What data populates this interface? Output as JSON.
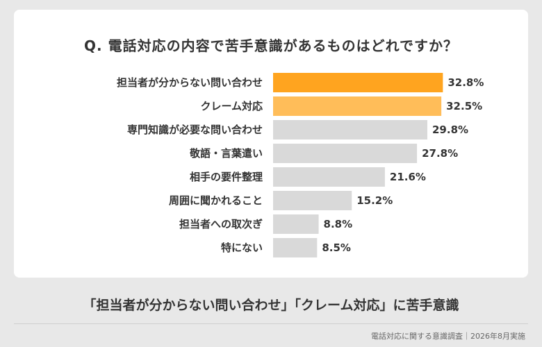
{
  "question": "Q. 電話対応の内容で苦手意識があるものはどれですか？",
  "headline": "「担当者が分からない問い合わせ」「クレーム対応」に苦手意識",
  "source": "電話対応に関する意識調査｜2026年8月実施",
  "colors": {
    "highlight_primary": "#ffa41f",
    "highlight_secondary": "#ffbd59",
    "bar_default": "#d9d9d9"
  },
  "chart_data": {
    "type": "bar",
    "orientation": "horizontal",
    "title": "Q. 電話対応の内容で苦手意識があるものはどれですか？",
    "xlabel": "",
    "ylabel": "",
    "unit": "%",
    "xlim": [
      0,
      35
    ],
    "grid": false,
    "categories": [
      "担当者が分からない問い合わせ",
      "クレーム対応",
      "専門知識が必要な問い合わせ",
      "敬語・言葉遣い",
      "相手の要件整理",
      "周囲に聞かれること",
      "担当者への取次ぎ",
      "特にない"
    ],
    "values": [
      32.8,
      32.5,
      29.8,
      27.8,
      21.6,
      15.2,
      8.8,
      8.5
    ],
    "value_labels": [
      "32.8%",
      "32.5%",
      "29.8%",
      "27.8%",
      "21.6%",
      "15.2%",
      "8.8%",
      "8.5%"
    ],
    "bar_colors": [
      "#ffa41f",
      "#ffbd59",
      "#d9d9d9",
      "#d9d9d9",
      "#d9d9d9",
      "#d9d9d9",
      "#d9d9d9",
      "#d9d9d9"
    ]
  }
}
